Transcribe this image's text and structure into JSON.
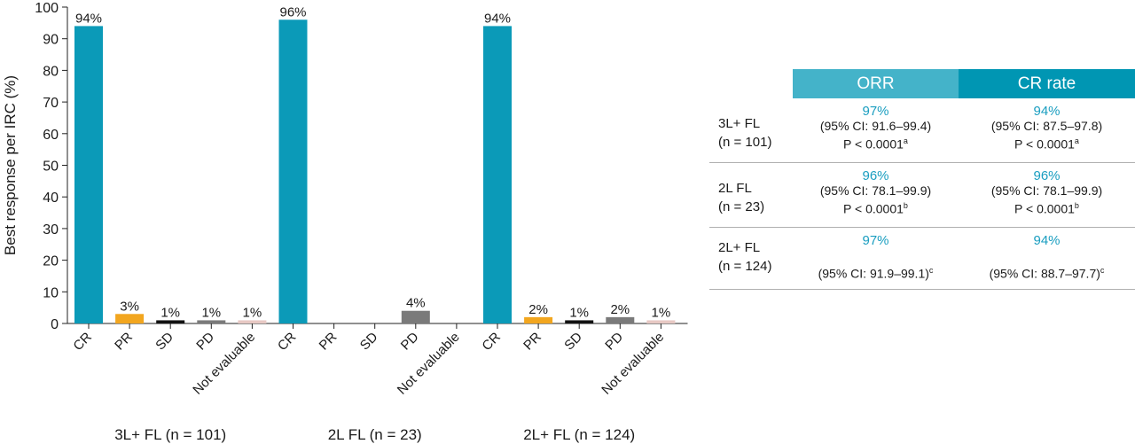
{
  "chart_data": {
    "type": "bar",
    "ylabel": "Best response per IRC (%)",
    "ylim": [
      0,
      100
    ],
    "yticks": [
      0,
      10,
      20,
      30,
      40,
      50,
      60,
      70,
      80,
      90,
      100
    ],
    "groups": [
      {
        "label": "3L+ FL (n = 101)",
        "bars": [
          {
            "category": "CR",
            "value": 94,
            "label": "94%",
            "color": "#0b9ab8"
          },
          {
            "category": "PR",
            "value": 3,
            "label": "3%",
            "color": "#f2a61f"
          },
          {
            "category": "SD",
            "value": 1,
            "label": "1%",
            "color": "#111111"
          },
          {
            "category": "PD",
            "value": 1,
            "label": "1%",
            "color": "#7a7a7a"
          },
          {
            "category": "Not evaluable",
            "value": 1,
            "label": "1%",
            "color": "#e8c9c4"
          }
        ]
      },
      {
        "label": "2L FL (n = 23)",
        "bars": [
          {
            "category": "CR",
            "value": 96,
            "label": "96%",
            "color": "#0b9ab8"
          },
          {
            "category": "PR",
            "value": 0,
            "label": "",
            "color": "#f2a61f"
          },
          {
            "category": "SD",
            "value": 0,
            "label": "",
            "color": "#111111"
          },
          {
            "category": "PD",
            "value": 4,
            "label": "4%",
            "color": "#7a7a7a"
          },
          {
            "category": "Not evaluable",
            "value": 0,
            "label": "",
            "color": "#e8c9c4"
          }
        ]
      },
      {
        "label": "2L+ FL (n = 124)",
        "bars": [
          {
            "category": "CR",
            "value": 94,
            "label": "94%",
            "color": "#0b9ab8"
          },
          {
            "category": "PR",
            "value": 2,
            "label": "2%",
            "color": "#f2a61f"
          },
          {
            "category": "SD",
            "value": 1,
            "label": "1%",
            "color": "#111111"
          },
          {
            "category": "PD",
            "value": 2,
            "label": "2%",
            "color": "#7a7a7a"
          },
          {
            "category": "Not evaluable",
            "value": 1,
            "label": "1%",
            "color": "#e8c9c4"
          }
        ]
      }
    ],
    "grid": false
  },
  "table": {
    "columns": [
      "ORR",
      "CR rate"
    ],
    "rows": [
      {
        "label_line1": "3L+ FL",
        "label_line2": "(n = 101)",
        "orr": {
          "pct": "97%",
          "ci": "(95% CI: 91.6–99.4)",
          "p": "P < 0.0001",
          "sup": "a"
        },
        "cr": {
          "pct": "94%",
          "ci": "(95% CI: 87.5–97.8)",
          "p": "P < 0.0001",
          "sup": "a"
        }
      },
      {
        "label_line1": "2L FL",
        "label_line2": "(n = 23)",
        "orr": {
          "pct": "96%",
          "ci": "(95% CI: 78.1–99.9)",
          "p": "P < 0.0001",
          "sup": "b"
        },
        "cr": {
          "pct": "96%",
          "ci": "(95% CI: 78.1–99.9)",
          "p": "P < 0.0001",
          "sup": "b"
        }
      },
      {
        "label_line1": "2L+ FL",
        "label_line2": "(n = 124)",
        "orr": {
          "pct": "97%",
          "ci": "(95% CI: 91.9–99.1)",
          "sup": "c"
        },
        "cr": {
          "pct": "94%",
          "ci": "(95% CI: 88.7–97.7)",
          "sup": "c"
        }
      }
    ]
  }
}
